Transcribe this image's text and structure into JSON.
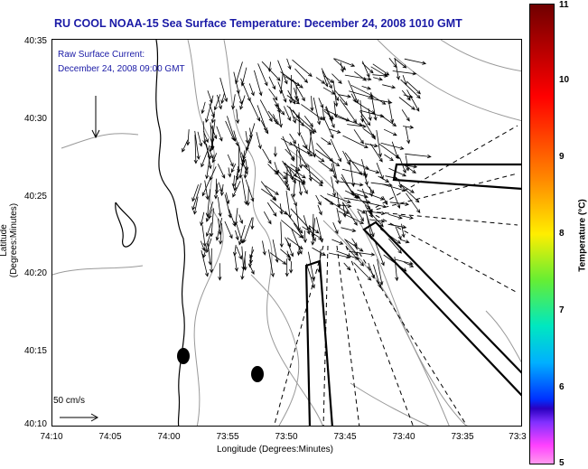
{
  "title": "RU COOL  NOAA-15  Sea Surface Temperature:  December 24, 2008 1010 GMT",
  "legend": {
    "line1": "Raw Surface Current:",
    "line2": "December 24, 2008 09:00 GMT",
    "scale_label": "50 cm/s"
  },
  "axes": {
    "xlabel": "Longitude (Degrees:Minutes)",
    "ylabel": "Latitude (Degrees:Minutes)",
    "x_ticks": [
      "74:10",
      "74:05",
      "74:00",
      "73:55",
      "73:50",
      "73:45",
      "73:40",
      "73:35",
      "73:3"
    ],
    "y_ticks": [
      "40:35",
      "40:30",
      "40:25",
      "40:20",
      "40:15",
      "40:10"
    ]
  },
  "colorbar": {
    "label": "Temperature (°C)",
    "ticks": [
      "11",
      "10",
      "9",
      "8",
      "7",
      "6",
      "5"
    ],
    "range": [
      5,
      11
    ]
  },
  "colors": {
    "title": "#1a1aa6",
    "contour": "#999999",
    "coast": "#000000"
  }
}
